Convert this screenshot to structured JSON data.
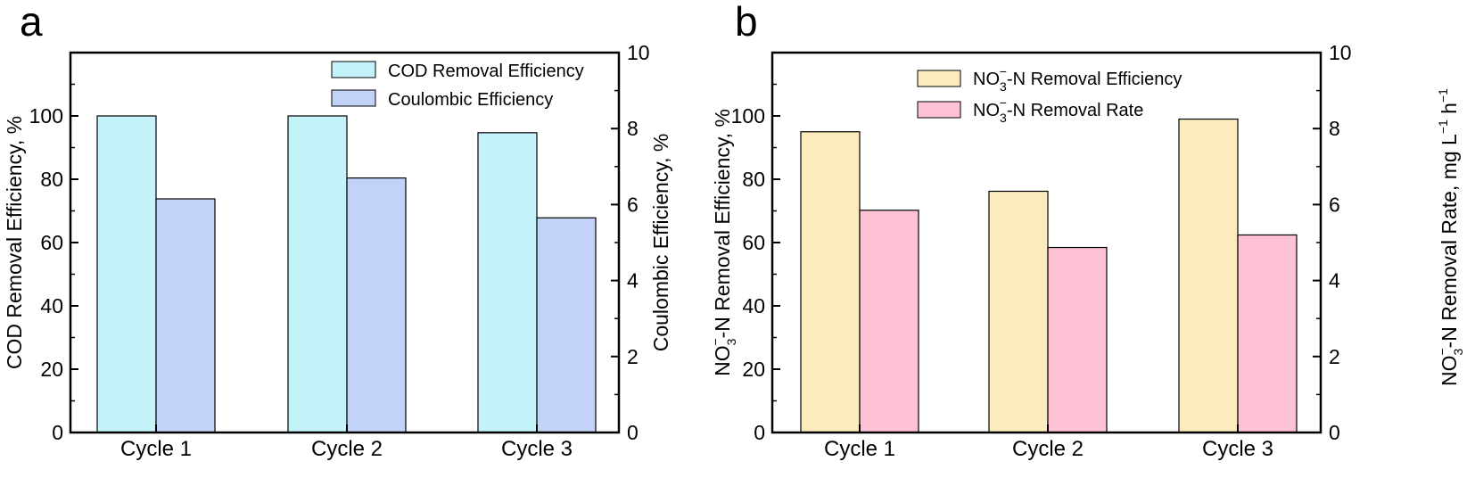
{
  "panels": {
    "a": {
      "letter": "a"
    },
    "b": {
      "letter": "b"
    }
  },
  "chart_data": [
    {
      "type": "bar",
      "panel": "a",
      "categories": [
        "Cycle 1",
        "Cycle 2",
        "Cycle 3"
      ],
      "series": [
        {
          "name": "COD Removal Efficiency",
          "axis": "left",
          "values": [
            100,
            100,
            94.7
          ],
          "color": "#c4f4fa"
        },
        {
          "name": "Coulombic Efficiency",
          "axis": "right",
          "values": [
            6.15,
            6.7,
            5.65
          ],
          "color": "#c3d3f8"
        }
      ],
      "ylabel": "COD Removal Efficiency, %",
      "y2label": "Coulombic Efficiency, %",
      "ylim": [
        0,
        120
      ],
      "yticks": [
        "0",
        "20",
        "40",
        "60",
        "80",
        "100"
      ],
      "y2lim": [
        0,
        10
      ],
      "y2ticks": [
        "0",
        "2",
        "4",
        "6",
        "8",
        "10"
      ],
      "legend": "top-right",
      "grid": false
    },
    {
      "type": "bar",
      "panel": "b",
      "categories": [
        "Cycle 1",
        "Cycle 2",
        "Cycle 3"
      ],
      "series": [
        {
          "name": "NO3−-N Removal Efficiency",
          "axis": "left",
          "values": [
            95,
            76.2,
            99
          ],
          "color": "#fcebbd"
        },
        {
          "name": "NO3−-N Removal Rate",
          "axis": "right",
          "values": [
            5.85,
            4.87,
            5.2
          ],
          "color": "#fdc2d5"
        }
      ],
      "ylabel": "NO3−-N Removal Efficiency, %",
      "y2label": "NO3−-N Removal Rate, mg L−1 h−1",
      "ylim": [
        0,
        120
      ],
      "yticks": [
        "0",
        "20",
        "40",
        "60",
        "80",
        "100"
      ],
      "y2lim": [
        0,
        10
      ],
      "y2ticks": [
        "0",
        "2",
        "4",
        "6",
        "8",
        "10"
      ],
      "legend": "top-right",
      "grid": false
    }
  ],
  "text": {
    "a": {
      "legend1": "COD Removal Efficiency",
      "legend2": "Coulombic Efficiency",
      "ylabel": "COD Removal Efficiency, %",
      "y2label": "Coulombic Efficiency, %"
    },
    "b": {
      "no": "NO",
      "sub3": "3",
      "supminus": "−",
      "legend1_rest": "-N Removal Efficiency",
      "legend2_rest": "-N Removal Rate",
      "ylabel_rest": "-N Removal Efficiency, %",
      "y2label_rest": "-N Removal Rate, mg L",
      "y2label_h": " h",
      "sup1": "−1"
    }
  }
}
